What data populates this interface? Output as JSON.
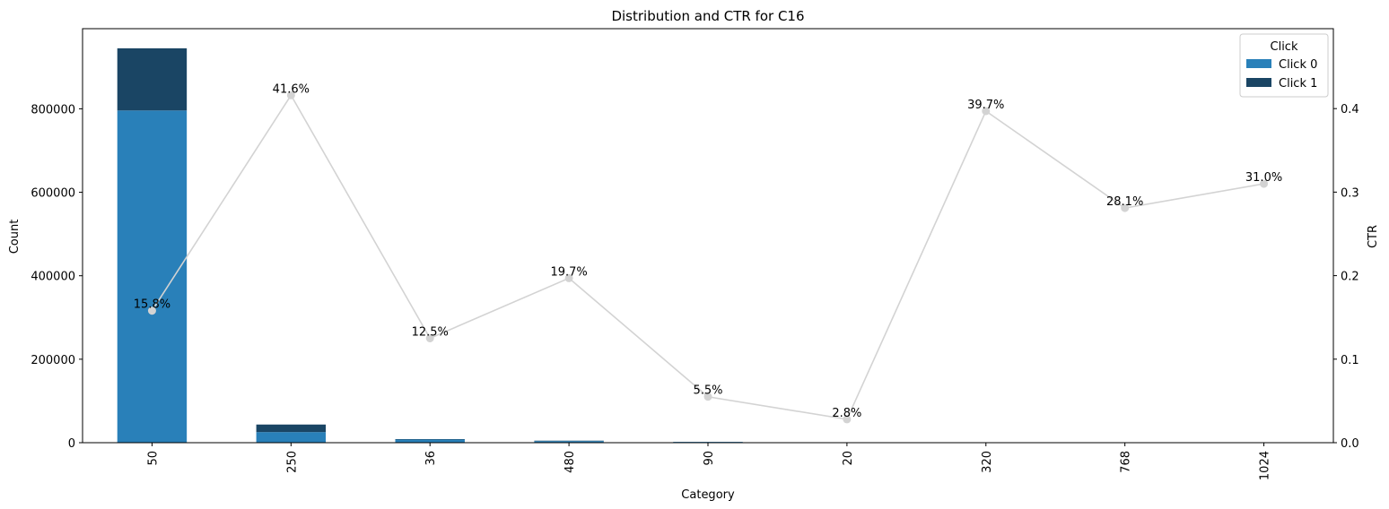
{
  "chart_data": {
    "type": "bar",
    "title": "Distribution and CTR for C16",
    "xlabel": "Category",
    "ylabel": "Count",
    "y2label": "CTR",
    "categories": [
      "50",
      "250",
      "36",
      "480",
      "90",
      "20",
      "320",
      "768",
      "1024"
    ],
    "series": [
      {
        "name": "Click 0",
        "values": [
          796000,
          25400,
          7500,
          3900,
          1900,
          700,
          400,
          180,
          140
        ],
        "color": "#2980b9"
      },
      {
        "name": "Click 1",
        "values": [
          149000,
          18100,
          1070,
          960,
          110,
          20,
          260,
          70,
          63
        ],
        "color": "#1a4564"
      }
    ],
    "ctr": {
      "values": [
        0.158,
        0.416,
        0.125,
        0.197,
        0.055,
        0.028,
        0.397,
        0.281,
        0.31
      ],
      "labels": [
        "15.8%",
        "41.6%",
        "12.5%",
        "19.7%",
        "5.5%",
        "2.8%",
        "39.7%",
        "28.1%",
        "31.0%"
      ],
      "color": "#d3d3d3"
    },
    "ylim": [
      0,
      992000
    ],
    "y2lim": [
      0,
      0.4957
    ],
    "yticks": [
      0,
      200000,
      400000,
      600000,
      800000
    ],
    "ytick_labels": [
      "0",
      "200000",
      "400000",
      "600000",
      "800000"
    ],
    "y2ticks": [
      0,
      0.1,
      0.2,
      0.3,
      0.4
    ],
    "y2tick_labels": [
      "0.0",
      "0.1",
      "0.2",
      "0.3",
      "0.4"
    ],
    "legend": {
      "title": "Click",
      "position": "top-right"
    },
    "grid": false
  }
}
